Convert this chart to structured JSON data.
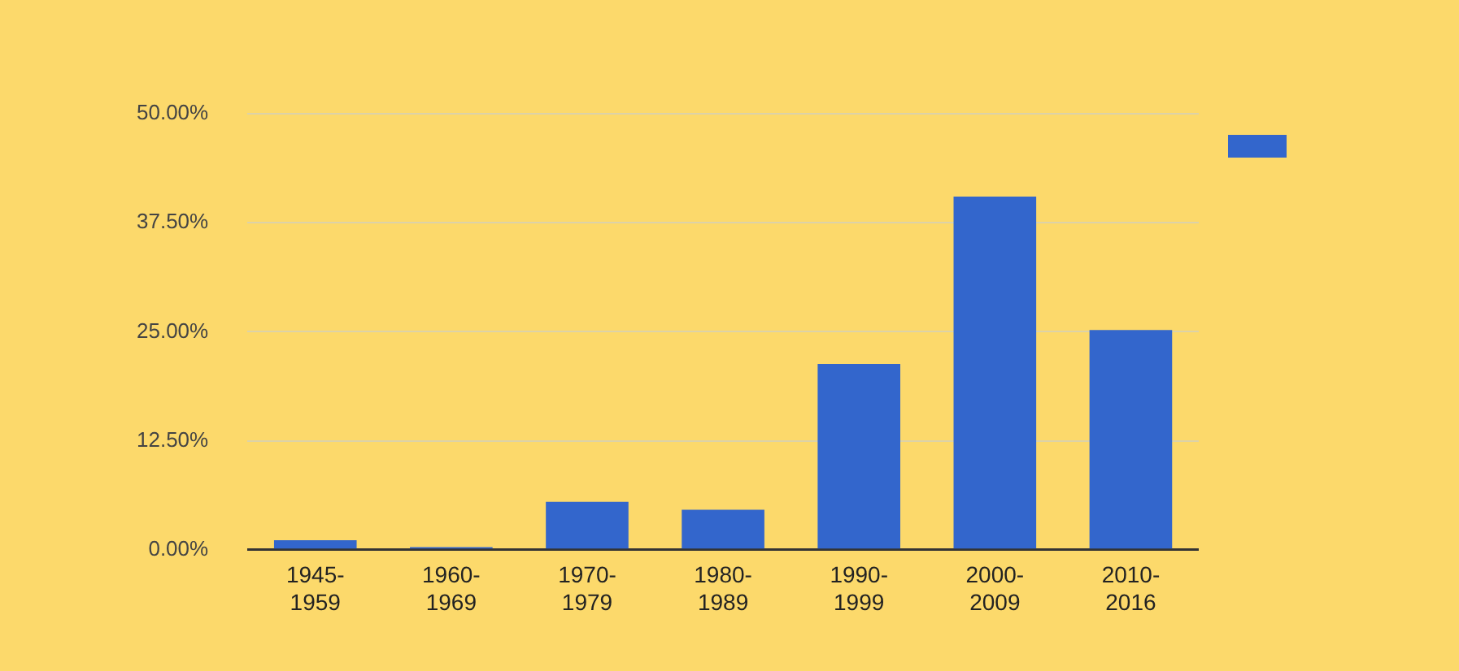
{
  "chart_data": {
    "type": "bar",
    "categories": [
      "1945-1959",
      "1960-1969",
      "1970-1979",
      "1980-1989",
      "1990-1999",
      "2000-2009",
      "2010-2016"
    ],
    "series": [
      {
        "color": "#3366cc",
        "values": [
          1.1,
          0.3,
          5.5,
          4.6,
          21.3,
          40.5,
          25.2
        ]
      }
    ],
    "ylim": [
      0,
      50
    ],
    "yticks": [
      {
        "value": 0,
        "label": "0.00%"
      },
      {
        "value": 12.5,
        "label": "12.50%"
      },
      {
        "value": 25,
        "label": "25.00%"
      },
      {
        "value": 37.5,
        "label": "37.50%"
      },
      {
        "value": 50,
        "label": "50.00%"
      }
    ],
    "grid": "y"
  }
}
